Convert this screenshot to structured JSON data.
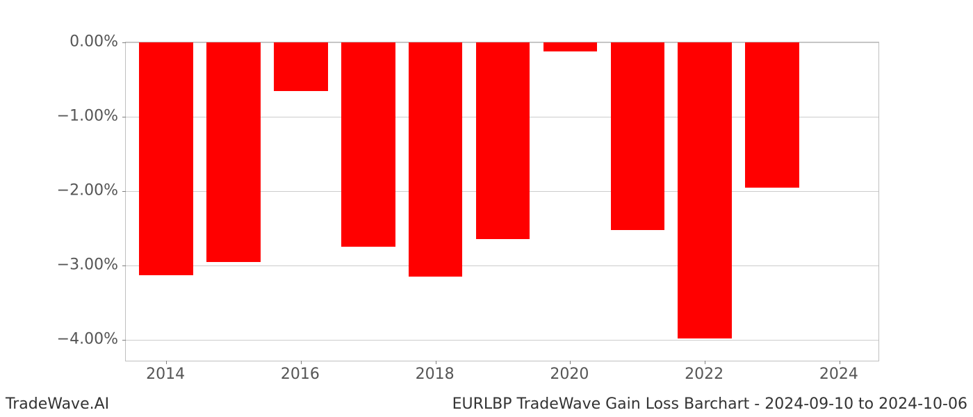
{
  "chart": {
    "type": "bar",
    "years": [
      2014,
      2015,
      2016,
      2017,
      2018,
      2019,
      2020,
      2021,
      2022,
      2023
    ],
    "values": [
      -3.13,
      -2.95,
      -0.65,
      -2.75,
      -3.15,
      -2.65,
      -0.12,
      -2.52,
      -3.98,
      -1.95
    ],
    "bar_color": "#ff0000",
    "background_color": "#ffffff",
    "grid_color": "#cccccc",
    "axis_color": "#bfbfbf",
    "tick_label_color": "#555555",
    "ylim": [
      -4.3,
      0.0
    ],
    "ytick_step": 1.0,
    "ytick_labels": [
      "0.00%",
      "−1.00%",
      "−2.00%",
      "−3.00%",
      "−4.00%"
    ],
    "ytick_values": [
      0.0,
      -1.0,
      -2.0,
      -3.0,
      -4.0
    ],
    "xtick_labels": [
      "2014",
      "2016",
      "2018",
      "2020",
      "2022",
      "2024"
    ],
    "xtick_values": [
      2014,
      2016,
      2018,
      2020,
      2022,
      2024
    ],
    "x_range": [
      2013.4,
      2024.6
    ],
    "bar_width_years": 0.8,
    "tick_fontsize": 22,
    "footer_fontsize": 22
  },
  "footer": {
    "left": "TradeWave.AI",
    "right": "EURLBP TradeWave Gain Loss Barchart - 2024-09-10 to 2024-10-06"
  }
}
